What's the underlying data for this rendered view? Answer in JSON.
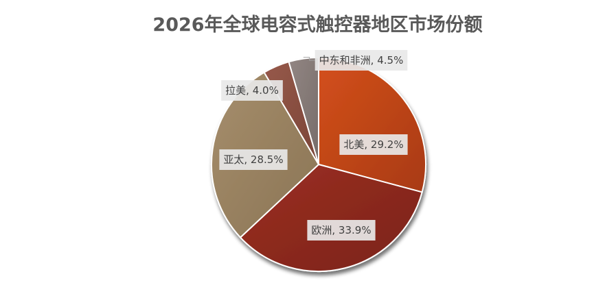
{
  "chart_data": {
    "type": "pie",
    "title": "2026年全球电容式触控器地区市场份额",
    "slices": [
      {
        "name": "北美",
        "value": 29.2,
        "label": "北美, 29.2%",
        "color": "#d4501c",
        "color_dark": "#a83a12"
      },
      {
        "name": "欧洲",
        "value": 33.9,
        "label": "欧洲, 33.9%",
        "color": "#9c3023",
        "color_dark": "#7a2218"
      },
      {
        "name": "亚太",
        "value": 28.5,
        "label": "亚太, 28.5%",
        "color": "#a68e6c",
        "color_dark": "#8a7454"
      },
      {
        "name": "拉美",
        "value": 4.0,
        "label": "拉美, 4.0%",
        "color": "#97594a",
        "color_dark": "#7a4538"
      },
      {
        "name": "中东和非洲",
        "value": 4.5,
        "label": "中东和非洲, 4.5%",
        "color": "#928683",
        "color_dark": "#766c69"
      }
    ],
    "legend": "none",
    "start_angle_deg": 0,
    "direction": "clockwise"
  }
}
